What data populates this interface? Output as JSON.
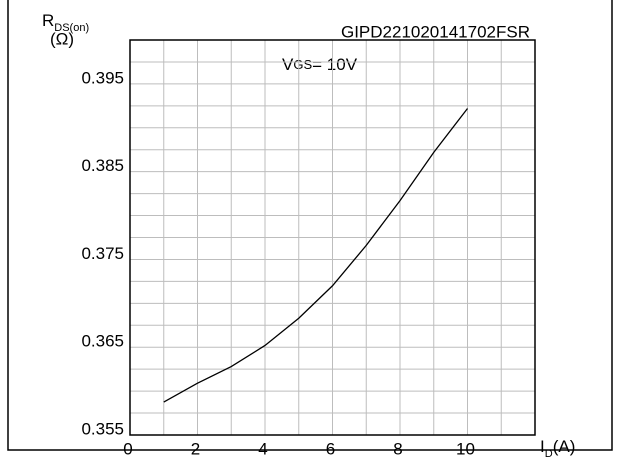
{
  "chart_data": {
    "type": "line",
    "ylabel": "R",
    "ylabel_sub": "DS(on)",
    "yunit": "(Ω)",
    "xlabel": "I",
    "xlabel_sub": "D",
    "xunit": "(A)",
    "code": "GIPD221020141702FSR",
    "annotation": {
      "main": "V",
      "sub": "GS",
      "rest": "= 10V"
    },
    "x": [
      1,
      2,
      3,
      4,
      5,
      6,
      7,
      8,
      9,
      10
    ],
    "series": [
      {
        "name": "VGS= 10V",
        "color": "#000000",
        "values": [
          0.35875,
          0.3609,
          0.3628,
          0.3652,
          0.3683,
          0.372,
          0.3766,
          0.3817,
          0.3872,
          0.3922
        ]
      }
    ],
    "xlim": [
      0,
      12
    ],
    "xticks": [
      0,
      2,
      4,
      6,
      8,
      10
    ],
    "minor_xticks": [
      1,
      3,
      5,
      7,
      9,
      11
    ],
    "ylim": [
      0.355,
      0.4
    ],
    "yticks": [
      0.355,
      0.365,
      0.375,
      0.385,
      0.395
    ],
    "minor_yticks": [
      0.3575,
      0.36,
      0.3625,
      0.3675,
      0.37,
      0.3725,
      0.3775,
      0.38,
      0.3825,
      0.3875,
      0.39,
      0.3925,
      0.3975
    ],
    "grid": true
  }
}
